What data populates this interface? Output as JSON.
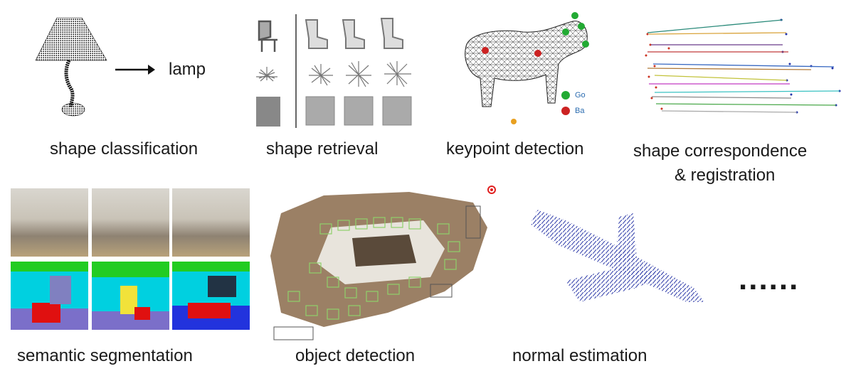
{
  "tasks": {
    "shape_classification": {
      "caption": "shape classification",
      "output_label": "lamp"
    },
    "shape_retrieval": {
      "caption": "shape retrieval"
    },
    "keypoint_detection": {
      "caption": "keypoint detection",
      "legend": [
        "Go",
        "Ba"
      ]
    },
    "shape_correspondence": {
      "caption_line1": "shape correspondence",
      "caption_line2": "& registration"
    },
    "semantic_segmentation": {
      "caption": "semantic segmentation"
    },
    "object_detection": {
      "caption": "object detection"
    },
    "normal_estimation": {
      "caption": "normal estimation"
    },
    "more": {
      "label": "......"
    }
  },
  "colors": {
    "keypoint_good": "#22aa33",
    "keypoint_bad": "#cc2222",
    "bbox": "#8fd16a",
    "normals": "#2d3aa8",
    "seg_wall": "#00d0e0",
    "seg_ceiling": "#22cc22",
    "seg_floor": "#7b6fc9",
    "seg_chair": "#e01010",
    "seg_table": "#f2e23a"
  }
}
